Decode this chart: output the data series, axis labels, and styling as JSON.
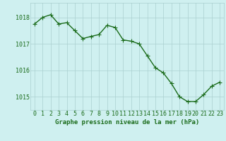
{
  "x": [
    0,
    1,
    2,
    3,
    4,
    5,
    6,
    7,
    8,
    9,
    10,
    11,
    12,
    13,
    14,
    15,
    16,
    17,
    18,
    19,
    20,
    21,
    22,
    23
  ],
  "y": [
    1017.75,
    1018.0,
    1018.1,
    1017.75,
    1017.8,
    1017.5,
    1017.2,
    1017.28,
    1017.35,
    1017.7,
    1017.62,
    1017.15,
    1017.1,
    1017.0,
    1016.55,
    1016.1,
    1015.9,
    1015.5,
    1015.0,
    1014.82,
    1014.82,
    1015.08,
    1015.4,
    1015.55
  ],
  "line_color": "#1a6b1a",
  "marker_color": "#1a6b1a",
  "bg_color": "#cff0f0",
  "grid_color_major": "#aacfcf",
  "grid_color_minor": "#bddede",
  "axis_label_color": "#1a6b1a",
  "xlabel_text": "Graphe pression niveau de la mer (hPa)",
  "ylim_min": 1014.5,
  "ylim_max": 1018.55,
  "yticks": [
    1015,
    1016,
    1017,
    1018
  ],
  "xticks": [
    0,
    1,
    2,
    3,
    4,
    5,
    6,
    7,
    8,
    9,
    10,
    11,
    12,
    13,
    14,
    15,
    16,
    17,
    18,
    19,
    20,
    21,
    22,
    23
  ],
  "marker_size": 2.5,
  "line_width": 1.0,
  "tick_fontsize": 6.0,
  "xlabel_fontsize": 6.5
}
